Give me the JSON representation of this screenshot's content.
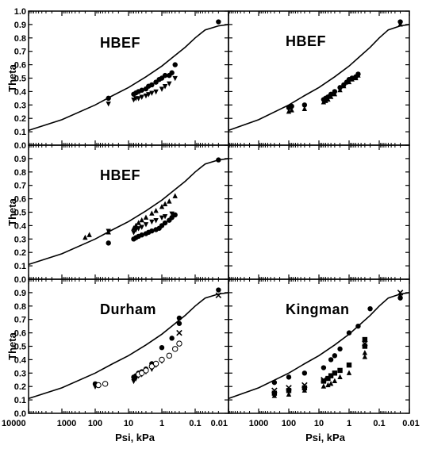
{
  "figure": {
    "ylabel": "Theta",
    "xlabel": "Psi, kPa",
    "y_ticks": [
      "0.0",
      "0.1",
      "0.2",
      "0.3",
      "0.4",
      "0.5",
      "0.6",
      "0.7",
      "0.8",
      "0.9",
      "1.0"
    ],
    "x_ticks_left": [
      "10000",
      "1000",
      "100",
      "10",
      "1",
      "0.1",
      "0.01"
    ],
    "x_ticks_right": [
      "10000",
      "1000",
      "100",
      "10",
      "1",
      "0.1",
      "0.01"
    ]
  },
  "chart_data": [
    {
      "type": "scatter",
      "panel_label": "HBEF",
      "xlabel": "",
      "ylabel": "Theta",
      "x_scale": "log-reversed",
      "xlim": [
        10000,
        0.01
      ],
      "ylim": [
        0,
        1
      ],
      "curve": {
        "x": [
          10000,
          1000,
          100,
          30,
          10,
          3,
          1,
          0.5,
          0.2,
          0.1,
          0.05,
          0.02,
          0.01
        ],
        "y": [
          0.11,
          0.19,
          0.3,
          0.37,
          0.43,
          0.51,
          0.59,
          0.65,
          0.73,
          0.8,
          0.86,
          0.89,
          0.9
        ]
      },
      "series": [
        {
          "marker": "circle-filled",
          "x": [
            40,
            7,
            6,
            5,
            4,
            3,
            2.5,
            2,
            1.5,
            1.2,
            1,
            0.8,
            0.6,
            0.5,
            0.4,
            0.02
          ],
          "y": [
            0.35,
            0.38,
            0.39,
            0.4,
            0.41,
            0.42,
            0.44,
            0.45,
            0.47,
            0.49,
            0.5,
            0.52,
            0.52,
            0.54,
            0.6,
            0.92
          ]
        },
        {
          "marker": "triangle-down-filled",
          "x": [
            40,
            7,
            6,
            5,
            4,
            3,
            2.5,
            2,
            1.5,
            1,
            0.8,
            0.6,
            0.4
          ],
          "y": [
            0.31,
            0.34,
            0.35,
            0.35,
            0.36,
            0.37,
            0.38,
            0.39,
            0.4,
            0.42,
            0.44,
            0.46,
            0.5
          ]
        }
      ]
    },
    {
      "type": "scatter",
      "panel_label": "HBEF",
      "xlabel": "",
      "ylabel": "",
      "x_scale": "log-reversed",
      "xlim": [
        10000,
        0.01
      ],
      "ylim": [
        0,
        1
      ],
      "curve": {
        "x": [
          10000,
          1000,
          100,
          30,
          10,
          3,
          1,
          0.5,
          0.2,
          0.1,
          0.05,
          0.02,
          0.01
        ],
        "y": [
          0.11,
          0.19,
          0.3,
          0.37,
          0.43,
          0.51,
          0.59,
          0.65,
          0.73,
          0.8,
          0.86,
          0.89,
          0.9
        ]
      },
      "series": [
        {
          "marker": "circle-filled",
          "x": [
            100,
            80,
            30,
            7,
            6,
            5,
            4,
            3,
            2,
            1.5,
            1.2,
            1,
            0.8,
            0.6,
            0.5,
            0.02
          ],
          "y": [
            0.28,
            0.29,
            0.3,
            0.34,
            0.35,
            0.36,
            0.38,
            0.4,
            0.43,
            0.45,
            0.47,
            0.49,
            0.5,
            0.51,
            0.53,
            0.92
          ]
        },
        {
          "marker": "triangle-up-filled",
          "x": [
            100,
            80,
            30,
            7,
            6,
            5,
            4,
            3,
            2,
            1.5,
            1,
            0.8,
            0.6,
            0.5,
            0.02
          ],
          "y": [
            0.25,
            0.26,
            0.27,
            0.32,
            0.33,
            0.34,
            0.36,
            0.38,
            0.41,
            0.44,
            0.47,
            0.49,
            0.5,
            0.52,
            0.9
          ]
        }
      ]
    },
    {
      "type": "scatter",
      "panel_label": "HBEF",
      "xlabel": "",
      "ylabel": "Theta",
      "x_scale": "log-reversed",
      "xlim": [
        10000,
        0.01
      ],
      "ylim": [
        0,
        1
      ],
      "curve": {
        "x": [
          10000,
          1000,
          100,
          30,
          10,
          3,
          1,
          0.5,
          0.2,
          0.1,
          0.05,
          0.02,
          0.01
        ],
        "y": [
          0.11,
          0.19,
          0.3,
          0.37,
          0.43,
          0.51,
          0.59,
          0.65,
          0.73,
          0.8,
          0.86,
          0.89,
          0.9
        ]
      },
      "series": [
        {
          "marker": "circle-filled",
          "x": [
            40,
            7,
            6,
            5,
            4,
            3,
            2.5,
            2,
            1.5,
            1.2,
            1,
            0.8,
            0.6,
            0.5,
            0.4,
            0.02
          ],
          "y": [
            0.27,
            0.3,
            0.31,
            0.32,
            0.33,
            0.34,
            0.35,
            0.36,
            0.37,
            0.38,
            0.4,
            0.42,
            0.44,
            0.46,
            0.48,
            0.89
          ]
        },
        {
          "marker": "triangle-up-filled",
          "x": [
            200,
            150,
            40,
            7,
            6,
            5,
            4,
            3,
            2,
            1.5,
            1,
            0.8,
            0.6,
            0.4
          ],
          "y": [
            0.31,
            0.33,
            0.35,
            0.38,
            0.4,
            0.42,
            0.44,
            0.46,
            0.49,
            0.51,
            0.54,
            0.56,
            0.58,
            0.62
          ]
        },
        {
          "marker": "triangle-down-filled",
          "x": [
            40,
            7,
            6,
            5,
            4,
            3,
            2,
            1.5,
            1,
            0.8,
            0.5
          ],
          "y": [
            0.36,
            0.35,
            0.37,
            0.38,
            0.39,
            0.41,
            0.43,
            0.44,
            0.46,
            0.47,
            0.49
          ]
        }
      ]
    },
    {
      "type": "scatter",
      "panel_label": "",
      "xlabel": "",
      "ylabel": "",
      "x_scale": "log-reversed",
      "xlim": [
        10000,
        0.01
      ],
      "ylim": [
        0,
        1
      ],
      "curve": null,
      "series": []
    },
    {
      "type": "scatter",
      "panel_label": "Durham",
      "xlabel": "Psi, kPa",
      "ylabel": "Theta",
      "x_scale": "log-reversed",
      "xlim": [
        10000,
        0.01
      ],
      "ylim": [
        0,
        1
      ],
      "curve": {
        "x": [
          10000,
          1000,
          100,
          30,
          10,
          3,
          1,
          0.5,
          0.2,
          0.1,
          0.05,
          0.02,
          0.01
        ],
        "y": [
          0.11,
          0.19,
          0.3,
          0.37,
          0.43,
          0.51,
          0.59,
          0.65,
          0.73,
          0.8,
          0.86,
          0.89,
          0.9
        ]
      },
      "series": [
        {
          "marker": "circle-filled",
          "x": [
            100,
            7,
            6,
            5,
            4,
            3,
            2,
            1,
            0.5,
            0.3,
            0.3,
            0.02
          ],
          "y": [
            0.22,
            0.27,
            0.28,
            0.3,
            0.31,
            0.33,
            0.37,
            0.49,
            0.56,
            0.67,
            0.71,
            0.92
          ]
        },
        {
          "marker": "triangle-down-filled",
          "x": [
            100,
            7,
            6,
            5,
            4,
            3,
            2,
            1.5,
            1,
            0.6,
            0.4
          ],
          "y": [
            0.2,
            0.24,
            0.26,
            0.28,
            0.29,
            0.31,
            0.33,
            0.36,
            0.39,
            0.43,
            0.48
          ]
        },
        {
          "marker": "circle-open",
          "x": [
            80,
            50,
            5,
            4,
            3,
            2,
            1.5,
            1,
            0.6,
            0.4,
            0.3
          ],
          "y": [
            0.21,
            0.22,
            0.29,
            0.3,
            0.32,
            0.35,
            0.37,
            0.4,
            0.43,
            0.48,
            0.52
          ]
        },
        {
          "marker": "x-cross",
          "x": [
            0.3,
            0.02
          ],
          "y": [
            0.6,
            0.88
          ]
        }
      ]
    },
    {
      "type": "scatter",
      "panel_label": "Kingman",
      "xlabel": "Psi, kPa",
      "ylabel": "",
      "x_scale": "log-reversed",
      "xlim": [
        10000,
        0.01
      ],
      "ylim": [
        0,
        1
      ],
      "curve": {
        "x": [
          10000,
          1000,
          100,
          30,
          10,
          3,
          1,
          0.5,
          0.2,
          0.1,
          0.05,
          0.02,
          0.01
        ],
        "y": [
          0.11,
          0.19,
          0.3,
          0.37,
          0.43,
          0.51,
          0.59,
          0.65,
          0.73,
          0.8,
          0.86,
          0.89,
          0.9
        ]
      },
      "series": [
        {
          "marker": "circle-filled",
          "x": [
            300,
            100,
            30,
            7,
            4,
            3,
            2,
            1,
            0.5,
            0.2,
            0.02
          ],
          "y": [
            0.23,
            0.27,
            0.3,
            0.34,
            0.4,
            0.43,
            0.48,
            0.6,
            0.65,
            0.78,
            0.86
          ]
        },
        {
          "marker": "square-filled",
          "x": [
            300,
            100,
            30,
            7,
            5,
            4,
            3,
            2,
            1,
            0.3,
            0.3
          ],
          "y": [
            0.15,
            0.17,
            0.19,
            0.24,
            0.26,
            0.28,
            0.3,
            0.32,
            0.36,
            0.5,
            0.55
          ]
        },
        {
          "marker": "triangle-up-filled",
          "x": [
            300,
            100,
            30,
            7,
            5,
            4,
            3,
            2,
            1,
            0.3,
            0.3,
            0.02
          ],
          "y": [
            0.13,
            0.14,
            0.17,
            0.2,
            0.21,
            0.22,
            0.24,
            0.27,
            0.3,
            0.42,
            0.45,
            0.88
          ]
        },
        {
          "marker": "x-cross",
          "x": [
            300,
            100,
            30,
            7,
            0.3,
            0.02
          ],
          "y": [
            0.17,
            0.19,
            0.21,
            0.25,
            0.52,
            0.9
          ]
        }
      ]
    }
  ]
}
